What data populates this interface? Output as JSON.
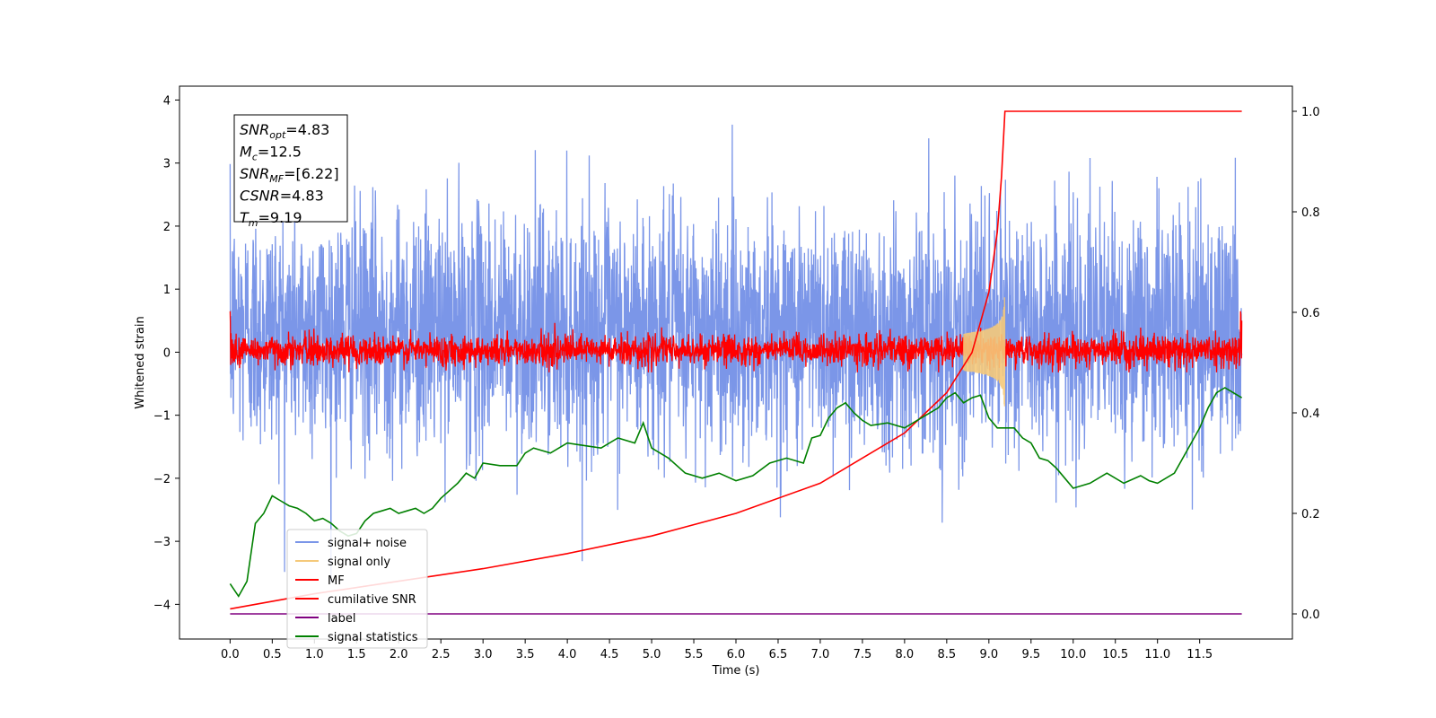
{
  "chart_data": {
    "type": "line",
    "xlabel": "Time (s)",
    "ylabel": "Whitened strain",
    "xlim": [
      -0.6,
      12.6
    ],
    "ylim": [
      -4.55,
      4.22
    ],
    "y2lim": [
      -0.05,
      1.05
    ],
    "x_ticks": [
      "0.0",
      "0.5",
      "1.0",
      "1.5",
      "2.0",
      "2.5",
      "3.0",
      "3.5",
      "4.0",
      "4.5",
      "5.0",
      "5.5",
      "6.0",
      "6.5",
      "7.0",
      "7.5",
      "8.0",
      "8.5",
      "9.0",
      "9.5",
      "10.0",
      "10.5",
      "11.0",
      "11.5"
    ],
    "y_ticks": [
      "4",
      "3",
      "2",
      "1",
      "0",
      "−1",
      "−2",
      "−3",
      "−4"
    ],
    "y2_ticks": [
      "1.0",
      "0.8",
      "0.6",
      "0.4",
      "0.2",
      "0.0"
    ],
    "legend_position": "lower-left",
    "annotation": [
      {
        "base": "SNR",
        "sub": "opt",
        "value": "=4.83"
      },
      {
        "base": "M",
        "sub": "c",
        "value": "=12.5"
      },
      {
        "base": "SNR",
        "sub": "MF",
        "value": "=[6.22]"
      },
      {
        "base": "CSNR",
        "sub": "",
        "value": "=4.83"
      },
      {
        "base": "T",
        "sub": "m",
        "value": "=9.19"
      }
    ],
    "merger_time": 9.19,
    "duration": 12.0,
    "series": [
      {
        "name": "signal+ noise",
        "color": "#7b96e8",
        "axis": "left",
        "kind": "noise",
        "amplitude_range": [
          -4.05,
          3.85
        ]
      },
      {
        "name": "signal only",
        "color": "#f5c97a",
        "axis": "left",
        "kind": "chirp",
        "peak": 0.9
      },
      {
        "name": "MF",
        "color": "#ff0000",
        "axis": "left",
        "kind": "noise",
        "amplitude_range": [
          -0.3,
          0.6
        ]
      },
      {
        "name": "cumilative SNR",
        "color": "#ff0000",
        "axis": "right",
        "x": [
          0.0,
          1.0,
          2.0,
          3.0,
          4.0,
          5.0,
          6.0,
          7.0,
          8.0,
          8.5,
          8.8,
          9.0,
          9.1,
          9.15,
          9.19,
          12.0
        ],
        "y": [
          0.01,
          0.04,
          0.065,
          0.09,
          0.12,
          0.155,
          0.2,
          0.26,
          0.36,
          0.44,
          0.52,
          0.64,
          0.76,
          0.87,
          1.0,
          1.0
        ]
      },
      {
        "name": "label",
        "color": "#800080",
        "axis": "right",
        "x": [
          0.0,
          12.0
        ],
        "y": [
          0.0,
          0.0
        ]
      },
      {
        "name": "signal statistics",
        "color": "#008000",
        "axis": "right",
        "x": [
          0.0,
          0.1,
          0.2,
          0.3,
          0.4,
          0.5,
          0.6,
          0.7,
          0.8,
          0.9,
          1.0,
          1.1,
          1.2,
          1.3,
          1.4,
          1.5,
          1.6,
          1.7,
          1.8,
          1.9,
          2.0,
          2.1,
          2.2,
          2.3,
          2.4,
          2.5,
          2.6,
          2.7,
          2.8,
          2.9,
          3.0,
          3.2,
          3.4,
          3.5,
          3.6,
          3.8,
          4.0,
          4.2,
          4.4,
          4.6,
          4.8,
          4.9,
          5.0,
          5.2,
          5.4,
          5.6,
          5.8,
          6.0,
          6.2,
          6.4,
          6.6,
          6.8,
          6.9,
          7.0,
          7.1,
          7.2,
          7.3,
          7.4,
          7.5,
          7.6,
          7.8,
          8.0,
          8.2,
          8.4,
          8.5,
          8.6,
          8.7,
          8.8,
          8.9,
          9.0,
          9.1,
          9.2,
          9.3,
          9.4,
          9.5,
          9.6,
          9.7,
          9.8,
          9.9,
          10.0,
          10.2,
          10.4,
          10.6,
          10.8,
          10.9,
          11.0,
          11.2,
          11.3,
          11.4,
          11.5,
          11.6,
          11.7,
          11.8,
          11.9,
          12.0
        ],
        "y": [
          0.06,
          0.035,
          0.065,
          0.18,
          0.2,
          0.235,
          0.225,
          0.215,
          0.21,
          0.2,
          0.185,
          0.19,
          0.18,
          0.165,
          0.155,
          0.16,
          0.185,
          0.2,
          0.205,
          0.21,
          0.2,
          0.205,
          0.21,
          0.2,
          0.21,
          0.23,
          0.245,
          0.26,
          0.28,
          0.27,
          0.3,
          0.295,
          0.295,
          0.32,
          0.33,
          0.32,
          0.34,
          0.335,
          0.33,
          0.35,
          0.34,
          0.38,
          0.33,
          0.31,
          0.28,
          0.27,
          0.28,
          0.265,
          0.275,
          0.3,
          0.31,
          0.3,
          0.35,
          0.355,
          0.39,
          0.41,
          0.42,
          0.4,
          0.385,
          0.375,
          0.38,
          0.37,
          0.39,
          0.41,
          0.43,
          0.44,
          0.42,
          0.43,
          0.435,
          0.39,
          0.37,
          0.37,
          0.37,
          0.35,
          0.34,
          0.31,
          0.305,
          0.29,
          0.27,
          0.25,
          0.26,
          0.28,
          0.26,
          0.275,
          0.265,
          0.26,
          0.28,
          0.31,
          0.34,
          0.37,
          0.41,
          0.44,
          0.45,
          0.44,
          0.43
        ]
      }
    ]
  }
}
